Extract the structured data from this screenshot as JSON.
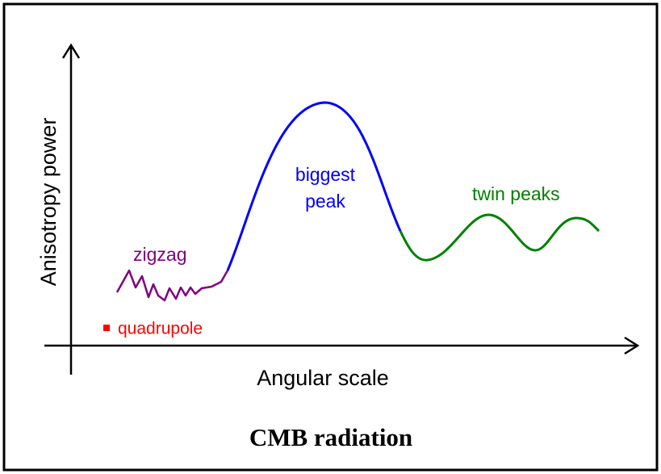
{
  "title": "CMB radiation",
  "axes": {
    "y_label": "Anisotropy power",
    "x_label": "Angular scale"
  },
  "labels": {
    "zigzag": "zigzag",
    "biggest_peak": [
      "biggest",
      "peak"
    ],
    "twin_peaks": "twin peaks",
    "quadrupole": "quadrupole"
  }
}
